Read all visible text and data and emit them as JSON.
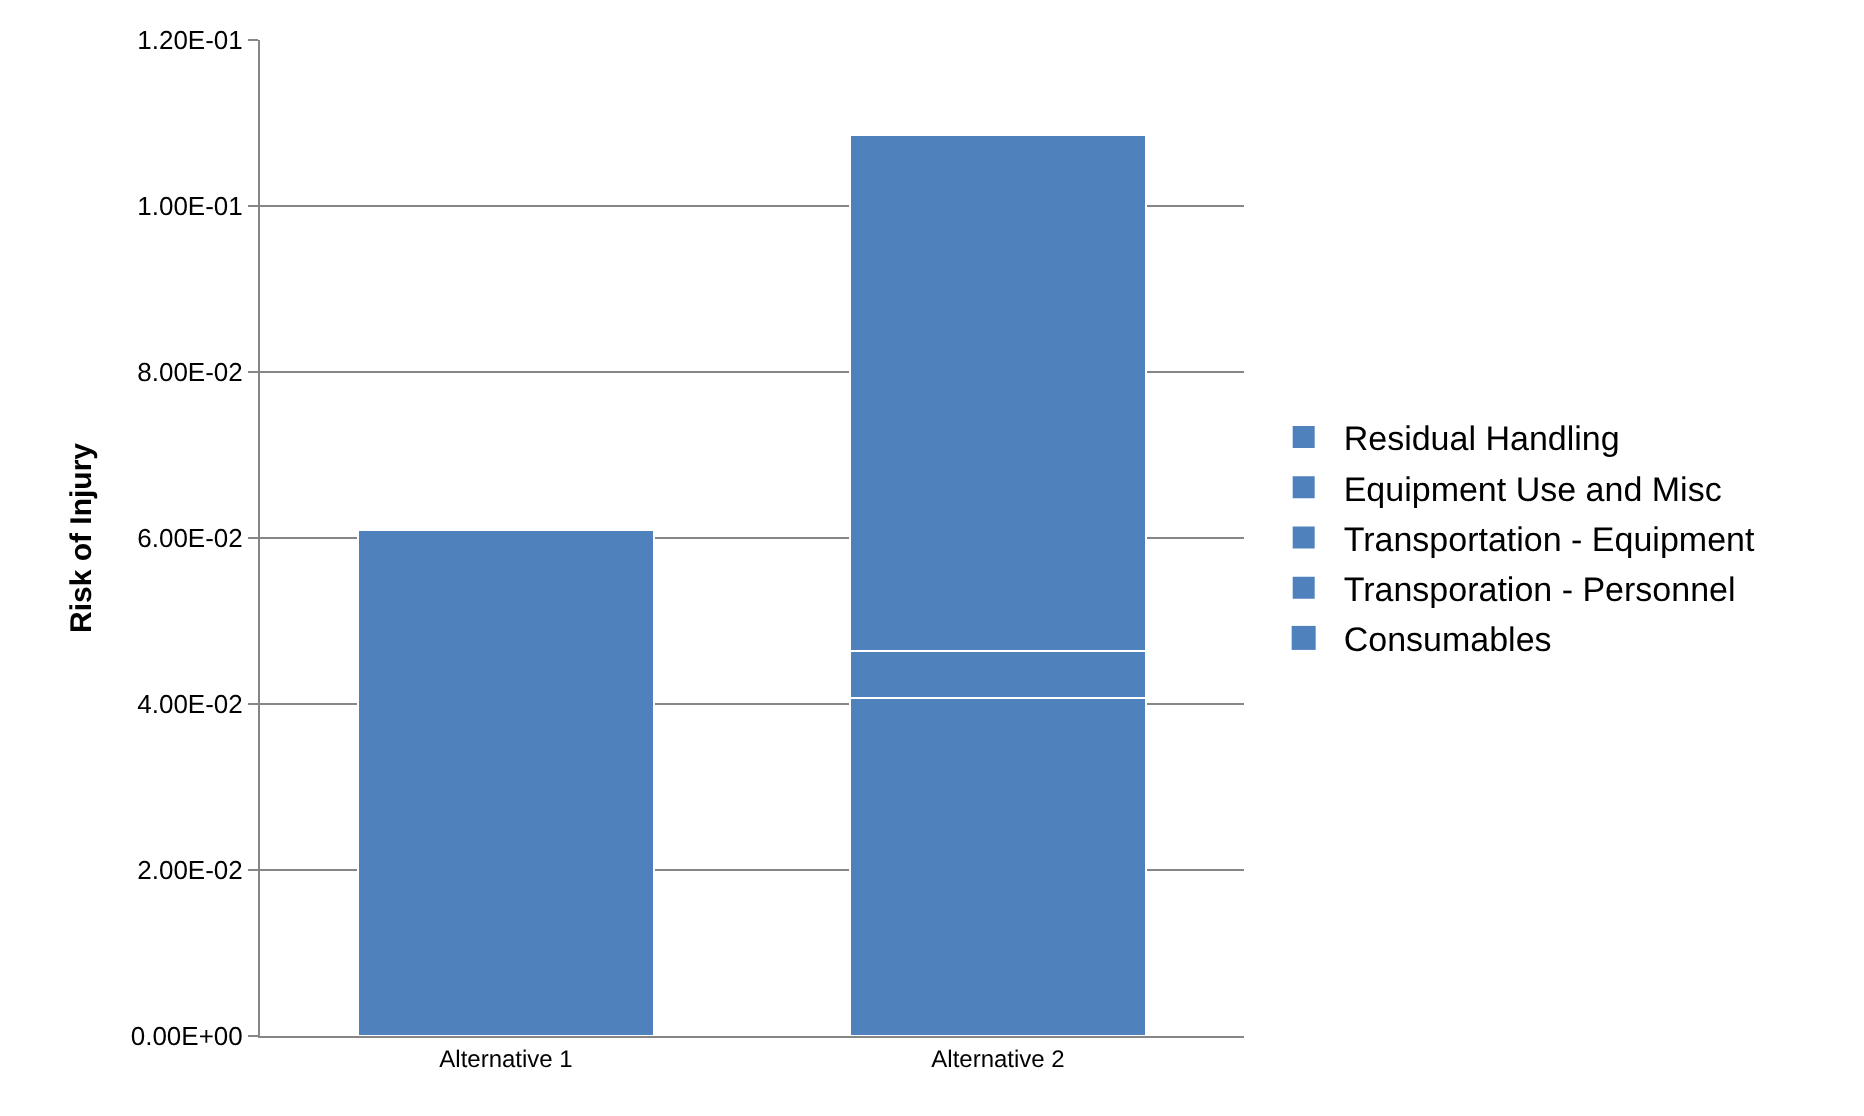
{
  "chart_data": {
    "type": "bar",
    "stacked": true,
    "ylabel": "Risk of Injury",
    "categories": [
      "Alternative 1",
      "Alternative 2"
    ],
    "series": [
      {
        "name": "Consumables",
        "color": "#4f81bd",
        "values": [
          0,
          0
        ]
      },
      {
        "name": "Transporation - Personnel",
        "color": "#4f81bd",
        "values": [
          0,
          0
        ]
      },
      {
        "name": "Transportation - Equipment",
        "color": "#4f81bd",
        "values": [
          0,
          0.0407
        ]
      },
      {
        "name": "Equipment Use and Misc",
        "color": "#4f81bd",
        "values": [
          0,
          0.0057
        ]
      },
      {
        "name": "Residual Handling",
        "color": "#4f81bd",
        "values": [
          0.061,
          0.0621
        ]
      }
    ],
    "ylim": [
      0,
      0.12
    ],
    "yticks": [
      {
        "value": 0,
        "label": "0.00E+00"
      },
      {
        "value": 0.02,
        "label": "2.00E-02"
      },
      {
        "value": 0.04,
        "label": "4.00E-02"
      },
      {
        "value": 0.06,
        "label": "6.00E-02"
      },
      {
        "value": 0.08,
        "label": "8.00E-02"
      },
      {
        "value": 0.1,
        "label": "1.00E-01"
      },
      {
        "value": 0.12,
        "label": "1.20E-01"
      }
    ],
    "grid": "y",
    "legend": "right"
  }
}
